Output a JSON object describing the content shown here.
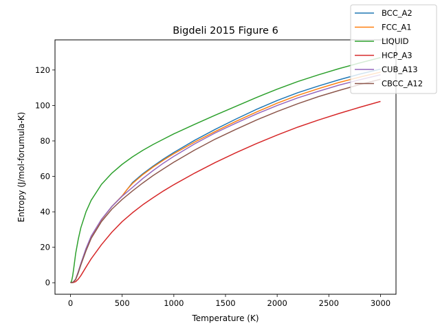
{
  "chart_data": {
    "type": "line",
    "title": "Bigdeli 2015 Figure 6",
    "xlabel": "Temperature (K)",
    "ylabel": "Entropy (J/mol-forumula-K)",
    "xlim": [
      -150,
      3150
    ],
    "ylim": [
      -6.5,
      137
    ],
    "xticks": [
      0,
      500,
      1000,
      1500,
      2000,
      2500,
      3000
    ],
    "yticks": [
      0,
      20,
      40,
      60,
      80,
      100,
      120
    ],
    "grid": false,
    "legend_position": "top-right",
    "series": [
      {
        "name": "BCC_A2",
        "color": "#1f77b4",
        "x": [
          0,
          25,
          50,
          75,
          100,
          150,
          200,
          300,
          400,
          500,
          600,
          700,
          800,
          900,
          1000,
          1200,
          1400,
          1600,
          1800,
          2000,
          2200,
          2400,
          2600,
          2800,
          3000
        ],
        "y": [
          0,
          0.3,
          2.0,
          6.0,
          10.5,
          19.0,
          26.0,
          35.5,
          43.0,
          49.0,
          56.5,
          61.5,
          65.8,
          69.8,
          73.5,
          80.3,
          86.5,
          92.3,
          97.8,
          102.8,
          107.2,
          111.0,
          114.5,
          117.7,
          120.5
        ]
      },
      {
        "name": "FCC_A1",
        "color": "#ff7f0e",
        "x": [
          0,
          25,
          50,
          75,
          100,
          150,
          200,
          300,
          400,
          500,
          550,
          600,
          700,
          800,
          900,
          1000,
          1200,
          1400,
          1600,
          1800,
          2000,
          2200,
          2400,
          2600,
          2800,
          3000
        ],
        "y": [
          0,
          0.3,
          2.0,
          6.0,
          10.5,
          19.0,
          26.0,
          35.5,
          43.0,
          49.0,
          52.8,
          56.0,
          61.0,
          65.3,
          69.2,
          72.8,
          79.3,
          85.3,
          91.0,
          96.3,
          101.3,
          105.7,
          109.5,
          113.0,
          116.0,
          118.8
        ]
      },
      {
        "name": "LIQUID",
        "color": "#2ca02c",
        "x": [
          0,
          10,
          20,
          30,
          40,
          50,
          75,
          100,
          150,
          200,
          300,
          400,
          500,
          600,
          700,
          800,
          900,
          1000,
          1200,
          1400,
          1600,
          1800,
          2000,
          2200,
          2400,
          2600,
          2800,
          3000
        ],
        "y": [
          0,
          0.8,
          3.5,
          7.5,
          12.0,
          16.5,
          24.5,
          31.0,
          40.0,
          46.5,
          55.5,
          61.8,
          66.8,
          71.0,
          74.7,
          78.0,
          81.0,
          84.0,
          89.3,
          94.5,
          99.5,
          104.5,
          109.2,
          113.5,
          117.3,
          120.8,
          124.0,
          127.0
        ]
      },
      {
        "name": "HCP_A3",
        "color": "#d62728",
        "x": [
          0,
          25,
          50,
          75,
          100,
          150,
          200,
          300,
          400,
          500,
          600,
          700,
          800,
          900,
          1000,
          1200,
          1400,
          1600,
          1800,
          2000,
          2200,
          2400,
          2600,
          2800,
          3000
        ],
        "y": [
          0,
          0.1,
          0.6,
          2.0,
          4.0,
          8.8,
          13.5,
          21.5,
          28.5,
          34.5,
          39.5,
          44.0,
          48.0,
          51.8,
          55.3,
          61.8,
          67.8,
          73.3,
          78.5,
          83.3,
          87.8,
          91.8,
          95.5,
          99.0,
          102.3
        ]
      },
      {
        "name": "CUB_A13",
        "color": "#9467bd",
        "x": [
          0,
          25,
          50,
          75,
          100,
          150,
          200,
          300,
          400,
          500,
          600,
          700,
          800,
          900,
          1000,
          1200,
          1400,
          1600,
          1800,
          2000,
          2200,
          2400,
          2600,
          2800,
          3000
        ],
        "y": [
          0,
          0.3,
          2.0,
          6.2,
          10.8,
          19.3,
          26.3,
          35.8,
          43.0,
          48.8,
          53.8,
          58.8,
          63.3,
          67.5,
          71.3,
          78.3,
          84.5,
          90.0,
          95.2,
          100.0,
          104.3,
          108.0,
          111.5,
          114.5,
          117.3
        ]
      },
      {
        "name": "CBCC_A12",
        "color": "#8c564b",
        "x": [
          0,
          25,
          50,
          75,
          100,
          150,
          200,
          300,
          400,
          500,
          600,
          700,
          800,
          900,
          1000,
          1200,
          1400,
          1600,
          1800,
          2000,
          2200,
          2400,
          2600,
          2800,
          3000
        ],
        "y": [
          0,
          0.2,
          1.8,
          5.5,
          10.0,
          18.0,
          25.0,
          34.5,
          41.5,
          47.0,
          51.8,
          56.3,
          60.5,
          64.3,
          68.0,
          74.8,
          81.0,
          86.5,
          91.8,
          96.6,
          101.0,
          105.0,
          108.5,
          111.8,
          114.8
        ]
      }
    ]
  }
}
